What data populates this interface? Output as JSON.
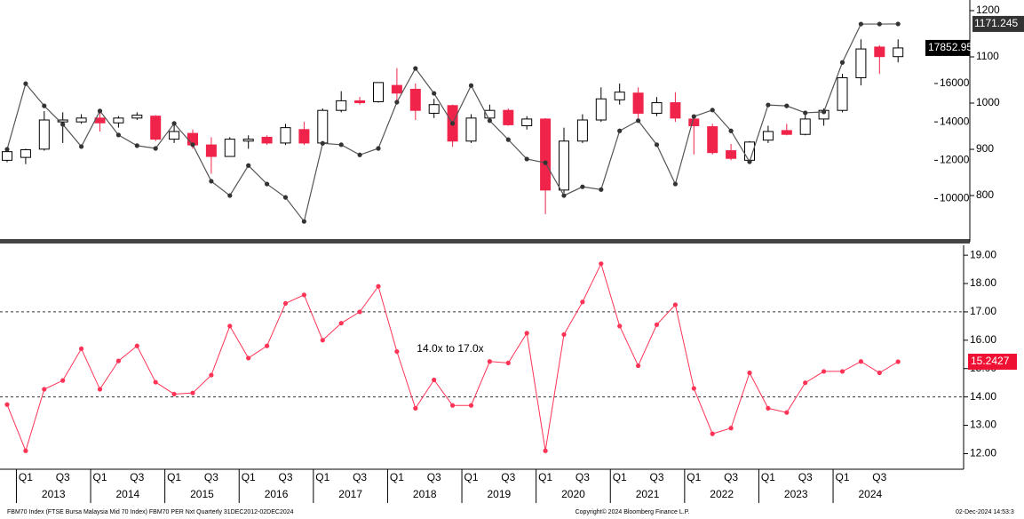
{
  "chart_data": [
    {
      "type": "candlestick",
      "up_color": "#ffffff",
      "down_color": "#f0244a",
      "edge_color": "#000000",
      "open": [
        12000,
        12150,
        12580,
        14000,
        14000,
        14200,
        13950,
        14200,
        14300,
        13100,
        13400,
        12800,
        12200,
        13000,
        13200,
        12900,
        13600,
        12900,
        14600,
        15100,
        15050,
        15900,
        15700,
        14450,
        14850,
        13000,
        14200,
        14600,
        13800,
        14150,
        10450,
        13000,
        14100,
        15150,
        15500,
        14450,
        15000,
        14150,
        13750,
        12500,
        12000,
        13050,
        13550,
        13350,
        14150,
        14600,
        16300,
        17900,
        17400
      ],
      "high": [
        12600,
        12600,
        14560,
        14500,
        14400,
        14600,
        14300,
        14500,
        14350,
        14000,
        13600,
        13200,
        13200,
        13300,
        13300,
        13900,
        14000,
        14700,
        15600,
        15300,
        16050,
        16800,
        16000,
        15200,
        14900,
        14400,
        14900,
        14700,
        14300,
        14200,
        13700,
        14400,
        15800,
        16000,
        15800,
        15300,
        15550,
        14200,
        13900,
        12850,
        13000,
        13800,
        13900,
        14500,
        14700,
        16500,
        18300,
        18000,
        18300
      ],
      "low": [
        11900,
        11800,
        12500,
        12900,
        13900,
        13500,
        13700,
        14100,
        13000,
        12900,
        12600,
        11300,
        12200,
        12600,
        12800,
        12800,
        12800,
        12800,
        14500,
        14900,
        15000,
        15000,
        14100,
        14200,
        12700,
        12900,
        14000,
        13800,
        13600,
        9200,
        10300,
        12900,
        14000,
        14900,
        14200,
        14300,
        14000,
        12300,
        12300,
        12000,
        11900,
        12900,
        13300,
        13300,
        13800,
        14500,
        15900,
        16500,
        17100
      ],
      "close": [
        12450,
        12550,
        14100,
        14100,
        14200,
        13950,
        14200,
        14350,
        13100,
        13500,
        12800,
        12200,
        13100,
        13100,
        12900,
        13700,
        12900,
        14600,
        15100,
        15000,
        16050,
        15500,
        14600,
        14900,
        13000,
        14200,
        14600,
        13850,
        14150,
        10450,
        13000,
        14100,
        15200,
        15550,
        14450,
        15000,
        14200,
        13800,
        12400,
        12100,
        12950,
        13500,
        13350,
        14150,
        14600,
        16300,
        17800,
        17400,
        17852.95
      ],
      "ylim": [
        7850,
        20350
      ],
      "yticks": [
        10000,
        12000,
        14000,
        16000
      ],
      "line": {
        "color": "#555555",
        "axis": "y2",
        "values": [
          900,
          1042,
          994,
          954,
          906,
          983,
          931,
          908,
          902,
          956,
          910,
          831,
          800,
          865,
          825,
          796,
          744,
          913,
          910,
          888,
          902,
          1002,
          1075,
          1021,
          956,
          1038,
          962,
          921,
          879,
          871,
          800,
          819,
          813,
          940,
          962,
          910,
          825,
          971,
          985,
          940,
          873,
          996,
          994,
          979,
          981,
          1088,
          1171,
          1171,
          1171.245
        ]
      },
      "y2lim": [
        704,
        1223
      ],
      "y2ticks": [
        800,
        900,
        1000,
        1100,
        1200
      ]
    },
    {
      "type": "line",
      "color": "#ff3355",
      "categories": [
        null,
        "Q1",
        null,
        "Q3",
        null,
        "Q1",
        null,
        "Q3",
        null,
        "Q1",
        null,
        "Q3",
        null,
        "Q1",
        null,
        "Q3",
        null,
        "Q1",
        null,
        "Q3",
        null,
        "Q1",
        null,
        "Q3",
        null,
        "Q1",
        null,
        "Q3",
        null,
        "Q1",
        null,
        "Q3",
        null,
        "Q1",
        null,
        "Q3",
        null,
        "Q1",
        null,
        "Q3",
        null,
        "Q1",
        null,
        "Q3",
        null,
        "Q1",
        null,
        "Q3",
        null
      ],
      "years": [
        "2013",
        "2014",
        "2015",
        "2016",
        "2017",
        "2018",
        "2019",
        "2020",
        "2021",
        "2022",
        "2023",
        "2024"
      ],
      "values": [
        13.73,
        12.1,
        14.27,
        14.58,
        15.7,
        14.27,
        15.27,
        15.8,
        14.52,
        14.1,
        14.14,
        14.77,
        16.5,
        15.37,
        15.8,
        17.3,
        17.6,
        16.0,
        16.6,
        17.0,
        17.9,
        15.6,
        13.6,
        14.6,
        13.7,
        13.7,
        15.25,
        15.2,
        16.25,
        12.1,
        16.2,
        17.35,
        18.7,
        16.5,
        15.1,
        16.55,
        17.25,
        14.3,
        12.7,
        12.9,
        14.85,
        13.6,
        13.45,
        14.5,
        14.9,
        14.9,
        15.25,
        14.85,
        15.2427
      ],
      "ylim": [
        11.45,
        19.38
      ],
      "yticks": [
        {
          "value": 12,
          "label": "12.00"
        },
        {
          "value": 13,
          "label": "13.00"
        },
        {
          "value": 14,
          "label": "14.00"
        },
        {
          "value": 15,
          "label": "15.00"
        },
        {
          "value": 16,
          "label": "16.00"
        },
        {
          "value": 17,
          "label": "17.00"
        },
        {
          "value": 18,
          "label": "18.00"
        },
        {
          "value": 19,
          "label": "19.00"
        }
      ],
      "reference_lines": [
        14,
        17
      ],
      "annotation": "14.0x to 17.0x"
    }
  ],
  "footer": {
    "left": "FBM70 Index (FTSE Bursa Malaysia Mid 70 Index) FBM70 PER Nxt  Quarterly 31DEC2012-02DEC2024",
    "center": "Copyright© 2024 Bloomberg Finance L.P.",
    "right": "02-Dec-2024 14:53:3"
  }
}
